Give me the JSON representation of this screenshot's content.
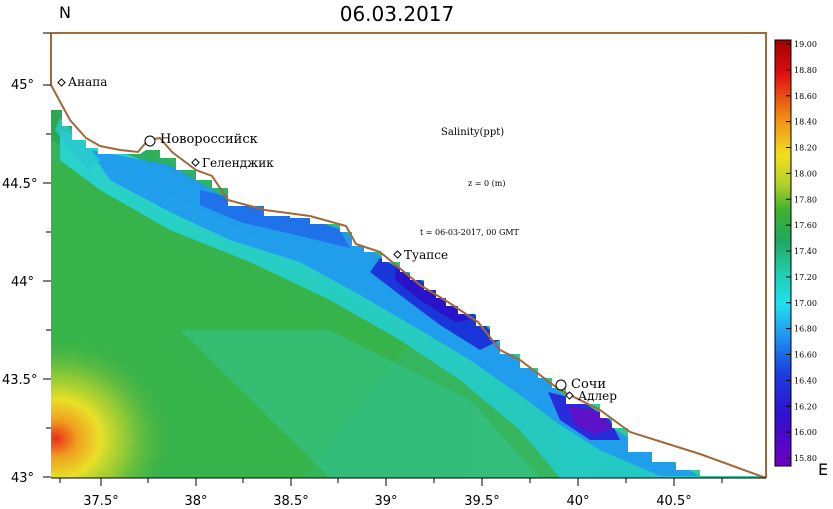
{
  "title": "06.03.2017",
  "north_label": "N",
  "east_label": "E",
  "info": {
    "variable": "Salinity(ppt)",
    "depth": "z = 0 (m)",
    "time": "t = 06-03-2017, 00 GMT"
  },
  "lat_ticks": [
    "45°",
    "44.5°",
    "44°",
    "43.5°",
    "43°"
  ],
  "lon_ticks": [
    "37.5°",
    "38°",
    "38.5°",
    "39°",
    "39.5°",
    "40°",
    "40.5°"
  ],
  "cities": [
    {
      "name": "Анапа",
      "major": false
    },
    {
      "name": "Новороссийск",
      "major": true
    },
    {
      "name": "Геленджик",
      "major": false
    },
    {
      "name": "Туапсе",
      "major": false
    },
    {
      "name": "Сочи",
      "major": true
    },
    {
      "name": "Адлер",
      "major": false
    }
  ],
  "colorbar": {
    "labels": [
      "19.00",
      "18.80",
      "18.60",
      "18.40",
      "18.20",
      "18.00",
      "17.80",
      "17.60",
      "17.40",
      "17.20",
      "17.00",
      "16.80",
      "16.60",
      "16.40",
      "16.20",
      "16.00",
      "15.80"
    ],
    "min": 15.8,
    "max": 19.0
  },
  "colors": {
    "coast": "#a0693c",
    "high_salinity": "#e0301e",
    "mid_salinity": "#2fb34a",
    "low_salinity": "#4020d0"
  }
}
